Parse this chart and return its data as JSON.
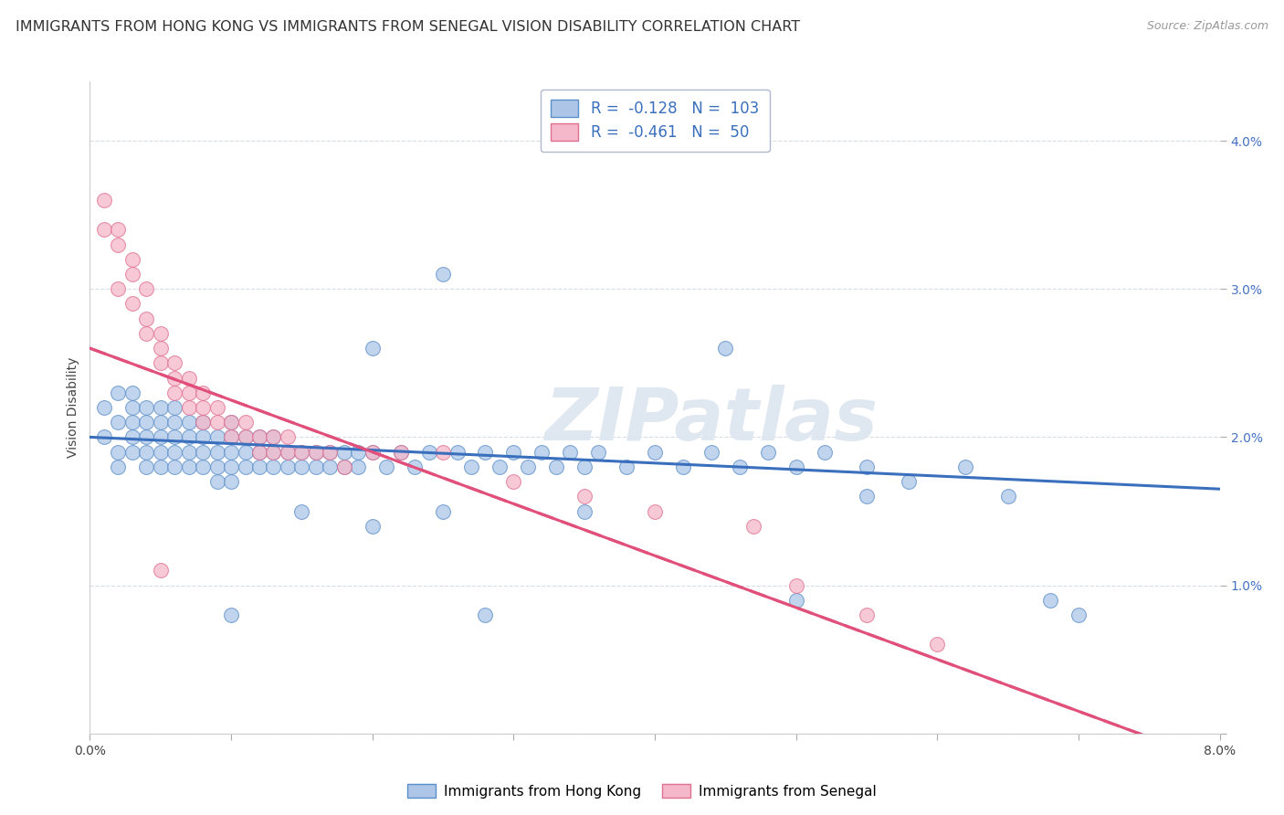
{
  "title": "IMMIGRANTS FROM HONG KONG VS IMMIGRANTS FROM SENEGAL VISION DISABILITY CORRELATION CHART",
  "source": "Source: ZipAtlas.com",
  "ylabel": "Vision Disability",
  "xlim": [
    0.0,
    0.08
  ],
  "ylim": [
    0.0,
    0.044
  ],
  "yticks": [
    0.0,
    0.01,
    0.02,
    0.03,
    0.04
  ],
  "ytick_labels": [
    "",
    "1.0%",
    "2.0%",
    "3.0%",
    "4.0%"
  ],
  "xticks": [
    0.0,
    0.01,
    0.02,
    0.03,
    0.04,
    0.05,
    0.06,
    0.07,
    0.08
  ],
  "xtick_labels": [
    "0.0%",
    "",
    "",
    "",
    "",
    "",
    "",
    "",
    "8.0%"
  ],
  "hk_color": "#adc6e8",
  "hk_edge_color": "#5b8fc9",
  "hk_line_color": "#3a6fbd",
  "senegal_color": "#f5b8ca",
  "senegal_edge_color": "#e07090",
  "senegal_line_color": "#e0507a",
  "legend_border_color": "#b0b8d0",
  "watermark": "ZIPatlas",
  "background_color": "#ffffff",
  "grid_color": "#d8dce8",
  "title_fontsize": 11.5,
  "axis_label_fontsize": 10,
  "tick_fontsize": 10,
  "hk_R": -0.128,
  "hk_N": 103,
  "senegal_R": -0.461,
  "senegal_N": 50,
  "hk_points": [
    [
      0.001,
      0.02
    ],
    [
      0.001,
      0.022
    ],
    [
      0.002,
      0.021
    ],
    [
      0.002,
      0.019
    ],
    [
      0.002,
      0.023
    ],
    [
      0.002,
      0.018
    ],
    [
      0.003,
      0.022
    ],
    [
      0.003,
      0.021
    ],
    [
      0.003,
      0.02
    ],
    [
      0.003,
      0.019
    ],
    [
      0.003,
      0.023
    ],
    [
      0.004,
      0.021
    ],
    [
      0.004,
      0.02
    ],
    [
      0.004,
      0.019
    ],
    [
      0.004,
      0.018
    ],
    [
      0.004,
      0.022
    ],
    [
      0.005,
      0.021
    ],
    [
      0.005,
      0.02
    ],
    [
      0.005,
      0.019
    ],
    [
      0.005,
      0.018
    ],
    [
      0.005,
      0.022
    ],
    [
      0.006,
      0.021
    ],
    [
      0.006,
      0.02
    ],
    [
      0.006,
      0.019
    ],
    [
      0.006,
      0.018
    ],
    [
      0.006,
      0.022
    ],
    [
      0.007,
      0.02
    ],
    [
      0.007,
      0.019
    ],
    [
      0.007,
      0.018
    ],
    [
      0.007,
      0.021
    ],
    [
      0.008,
      0.02
    ],
    [
      0.008,
      0.019
    ],
    [
      0.008,
      0.018
    ],
    [
      0.008,
      0.021
    ],
    [
      0.009,
      0.02
    ],
    [
      0.009,
      0.019
    ],
    [
      0.009,
      0.018
    ],
    [
      0.009,
      0.017
    ],
    [
      0.01,
      0.021
    ],
    [
      0.01,
      0.02
    ],
    [
      0.01,
      0.019
    ],
    [
      0.01,
      0.018
    ],
    [
      0.01,
      0.017
    ],
    [
      0.011,
      0.02
    ],
    [
      0.011,
      0.019
    ],
    [
      0.011,
      0.018
    ],
    [
      0.012,
      0.02
    ],
    [
      0.012,
      0.019
    ],
    [
      0.012,
      0.018
    ],
    [
      0.013,
      0.019
    ],
    [
      0.013,
      0.018
    ],
    [
      0.013,
      0.02
    ],
    [
      0.014,
      0.019
    ],
    [
      0.014,
      0.018
    ],
    [
      0.015,
      0.019
    ],
    [
      0.015,
      0.018
    ],
    [
      0.016,
      0.019
    ],
    [
      0.016,
      0.018
    ],
    [
      0.017,
      0.019
    ],
    [
      0.017,
      0.018
    ],
    [
      0.018,
      0.019
    ],
    [
      0.018,
      0.018
    ],
    [
      0.019,
      0.019
    ],
    [
      0.019,
      0.018
    ],
    [
      0.02,
      0.019
    ],
    [
      0.021,
      0.018
    ],
    [
      0.022,
      0.019
    ],
    [
      0.023,
      0.018
    ],
    [
      0.024,
      0.019
    ],
    [
      0.025,
      0.031
    ],
    [
      0.026,
      0.019
    ],
    [
      0.027,
      0.018
    ],
    [
      0.028,
      0.019
    ],
    [
      0.029,
      0.018
    ],
    [
      0.03,
      0.019
    ],
    [
      0.031,
      0.018
    ],
    [
      0.032,
      0.019
    ],
    [
      0.033,
      0.018
    ],
    [
      0.034,
      0.019
    ],
    [
      0.035,
      0.018
    ],
    [
      0.036,
      0.019
    ],
    [
      0.038,
      0.018
    ],
    [
      0.04,
      0.019
    ],
    [
      0.042,
      0.018
    ],
    [
      0.044,
      0.019
    ],
    [
      0.046,
      0.018
    ],
    [
      0.048,
      0.019
    ],
    [
      0.05,
      0.018
    ],
    [
      0.052,
      0.019
    ],
    [
      0.055,
      0.018
    ],
    [
      0.058,
      0.017
    ],
    [
      0.062,
      0.018
    ],
    [
      0.01,
      0.008
    ],
    [
      0.02,
      0.014
    ],
    [
      0.028,
      0.008
    ],
    [
      0.05,
      0.009
    ],
    [
      0.068,
      0.009
    ],
    [
      0.02,
      0.026
    ],
    [
      0.045,
      0.026
    ],
    [
      0.025,
      0.015
    ],
    [
      0.015,
      0.015
    ],
    [
      0.035,
      0.015
    ],
    [
      0.055,
      0.016
    ],
    [
      0.065,
      0.016
    ],
    [
      0.07,
      0.008
    ]
  ],
  "senegal_points": [
    [
      0.001,
      0.036
    ],
    [
      0.001,
      0.034
    ],
    [
      0.002,
      0.034
    ],
    [
      0.002,
      0.033
    ],
    [
      0.002,
      0.03
    ],
    [
      0.003,
      0.032
    ],
    [
      0.003,
      0.031
    ],
    [
      0.003,
      0.029
    ],
    [
      0.004,
      0.03
    ],
    [
      0.004,
      0.028
    ],
    [
      0.004,
      0.027
    ],
    [
      0.005,
      0.027
    ],
    [
      0.005,
      0.026
    ],
    [
      0.005,
      0.025
    ],
    [
      0.006,
      0.025
    ],
    [
      0.006,
      0.024
    ],
    [
      0.006,
      0.023
    ],
    [
      0.007,
      0.024
    ],
    [
      0.007,
      0.023
    ],
    [
      0.007,
      0.022
    ],
    [
      0.008,
      0.023
    ],
    [
      0.008,
      0.022
    ],
    [
      0.008,
      0.021
    ],
    [
      0.009,
      0.022
    ],
    [
      0.009,
      0.021
    ],
    [
      0.01,
      0.021
    ],
    [
      0.01,
      0.02
    ],
    [
      0.011,
      0.021
    ],
    [
      0.011,
      0.02
    ],
    [
      0.012,
      0.02
    ],
    [
      0.012,
      0.019
    ],
    [
      0.013,
      0.02
    ],
    [
      0.013,
      0.019
    ],
    [
      0.014,
      0.02
    ],
    [
      0.014,
      0.019
    ],
    [
      0.015,
      0.019
    ],
    [
      0.016,
      0.019
    ],
    [
      0.017,
      0.019
    ],
    [
      0.018,
      0.018
    ],
    [
      0.02,
      0.019
    ],
    [
      0.022,
      0.019
    ],
    [
      0.025,
      0.019
    ],
    [
      0.03,
      0.017
    ],
    [
      0.035,
      0.016
    ],
    [
      0.04,
      0.015
    ],
    [
      0.047,
      0.014
    ],
    [
      0.05,
      0.01
    ],
    [
      0.055,
      0.008
    ],
    [
      0.06,
      0.006
    ],
    [
      0.005,
      0.011
    ]
  ]
}
